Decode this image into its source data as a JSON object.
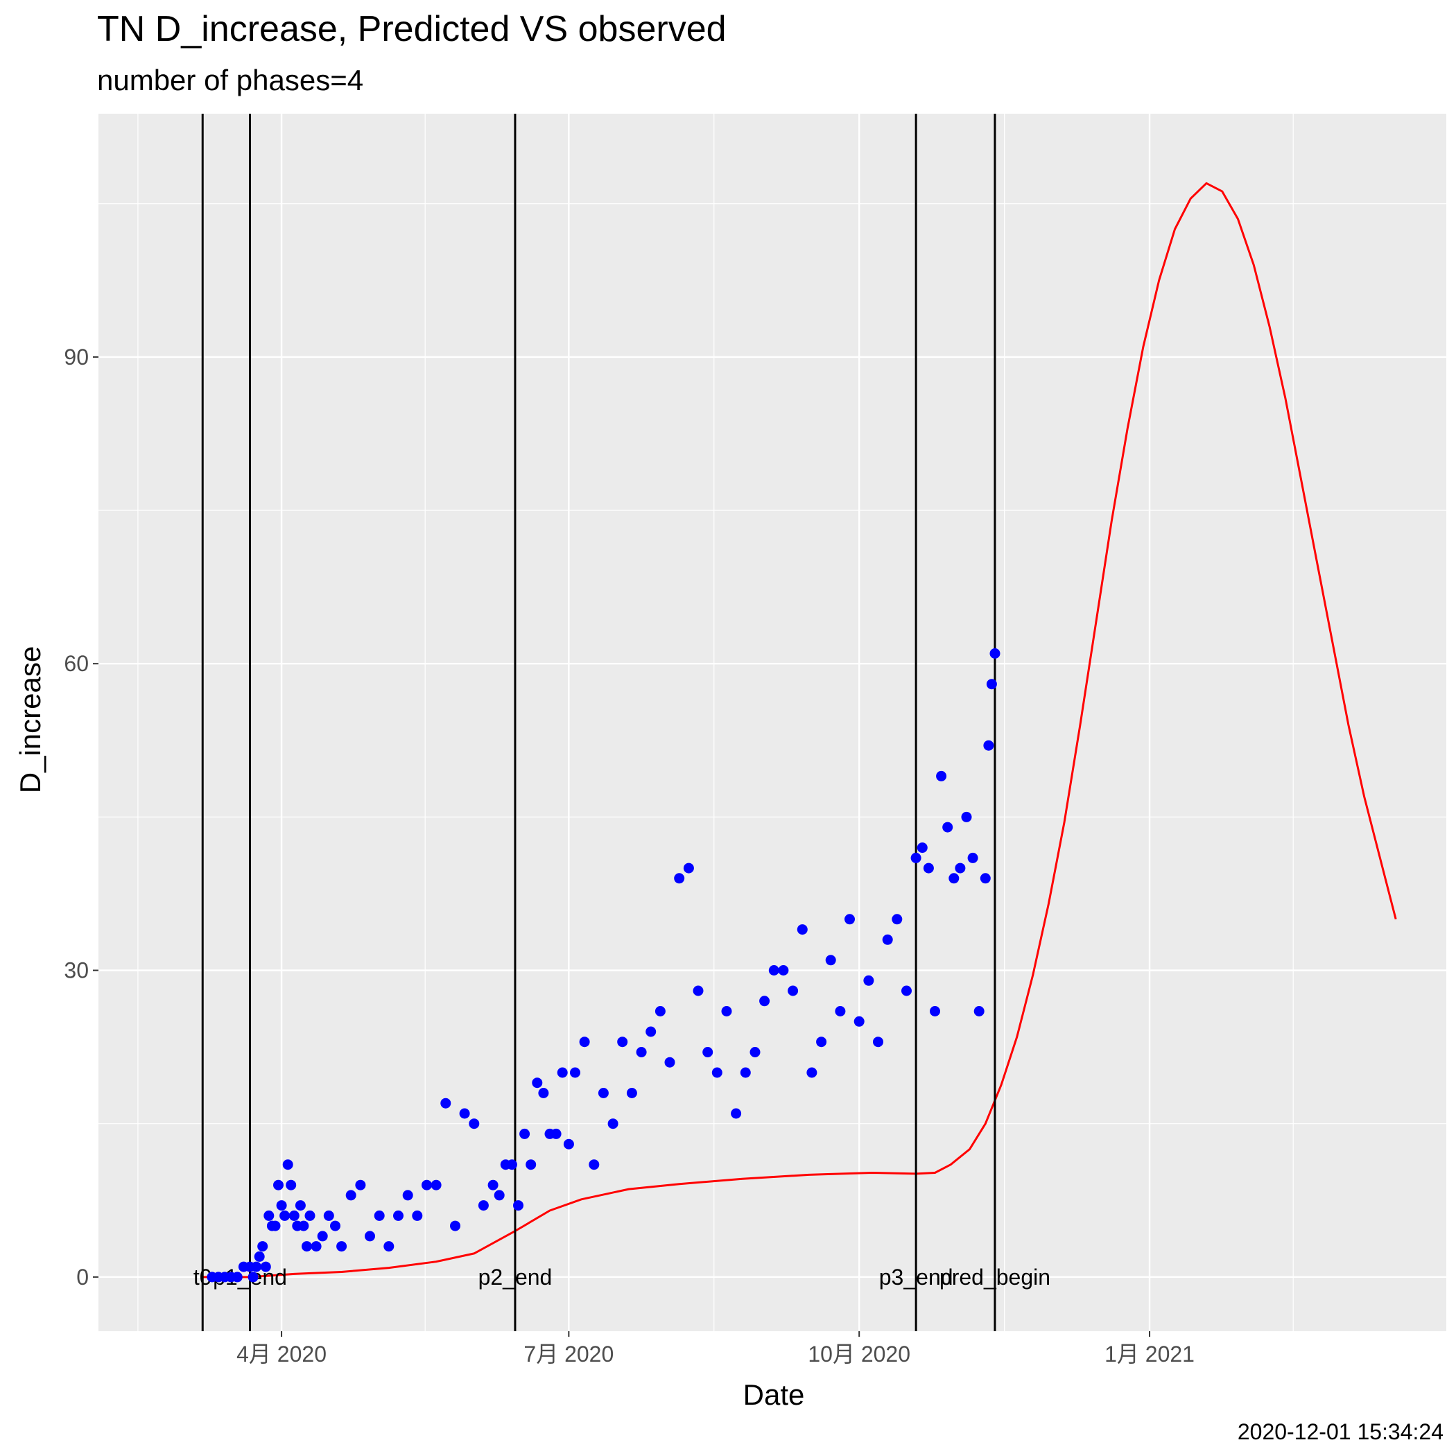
{
  "title": "TN D_increase, Predicted VS observed",
  "subtitle": "number of phases=4",
  "footer": "2020-12-01 15:34:24",
  "colors": {
    "panel": "#ebebeb",
    "grid": "#ffffff",
    "observed": "#0000ff",
    "predicted": "#ff0000",
    "vline": "#000000"
  },
  "chart_data": {
    "type": "scatter",
    "xlabel": "Date",
    "ylabel": "D_increase",
    "xlim": [
      "2020-02-03",
      "2021-04-05"
    ],
    "ylim": [
      -5.3,
      113.8
    ],
    "y_ticks": [
      0,
      30,
      60,
      90
    ],
    "x_ticks": [
      {
        "date": "2020-04-01",
        "label": "4月 2020"
      },
      {
        "date": "2020-07-01",
        "label": "7月 2020"
      },
      {
        "date": "2020-10-01",
        "label": "10月 2020"
      },
      {
        "date": "2021-01-01",
        "label": "1月 2021"
      }
    ],
    "grid": true,
    "vertical_lines": [
      {
        "date": "2020-03-07",
        "label": "t0"
      },
      {
        "date": "2020-03-22",
        "label": "p1_end"
      },
      {
        "date": "2020-06-14",
        "label": "p2_end"
      },
      {
        "date": "2020-10-19",
        "label": "p3_end"
      },
      {
        "date": "2020-11-13",
        "label": "pred_begin"
      }
    ],
    "series": [
      {
        "kind": "points",
        "x": [
          "2020-03-10",
          "2020-03-12",
          "2020-03-14",
          "2020-03-16",
          "2020-03-18",
          "2020-03-20",
          "2020-03-22",
          "2020-03-23",
          "2020-03-24",
          "2020-03-25",
          "2020-03-26",
          "2020-03-27",
          "2020-03-28",
          "2020-03-29",
          "2020-03-30",
          "2020-03-31",
          "2020-04-01",
          "2020-04-02",
          "2020-04-03",
          "2020-04-04",
          "2020-04-05",
          "2020-04-06",
          "2020-04-07",
          "2020-04-08",
          "2020-04-09",
          "2020-04-10",
          "2020-04-12",
          "2020-04-14",
          "2020-04-16",
          "2020-04-18",
          "2020-04-20",
          "2020-04-23",
          "2020-04-26",
          "2020-04-29",
          "2020-05-02",
          "2020-05-05",
          "2020-05-08",
          "2020-05-11",
          "2020-05-14",
          "2020-05-17",
          "2020-05-20",
          "2020-05-23",
          "2020-05-26",
          "2020-05-29",
          "2020-06-01",
          "2020-06-04",
          "2020-06-07",
          "2020-06-09",
          "2020-06-11",
          "2020-06-13",
          "2020-06-15",
          "2020-06-17",
          "2020-06-19",
          "2020-06-21",
          "2020-06-23",
          "2020-06-25",
          "2020-06-27",
          "2020-06-29",
          "2020-07-01",
          "2020-07-03",
          "2020-07-06",
          "2020-07-09",
          "2020-07-12",
          "2020-07-15",
          "2020-07-18",
          "2020-07-21",
          "2020-07-24",
          "2020-07-27",
          "2020-07-30",
          "2020-08-02",
          "2020-08-05",
          "2020-08-08",
          "2020-08-11",
          "2020-08-14",
          "2020-08-17",
          "2020-08-20",
          "2020-08-23",
          "2020-08-26",
          "2020-08-29",
          "2020-09-01",
          "2020-09-04",
          "2020-09-07",
          "2020-09-10",
          "2020-09-13",
          "2020-09-16",
          "2020-09-19",
          "2020-09-22",
          "2020-09-25",
          "2020-09-28",
          "2020-10-01",
          "2020-10-04",
          "2020-10-07",
          "2020-10-10",
          "2020-10-13",
          "2020-10-16",
          "2020-10-19",
          "2020-10-21",
          "2020-10-23",
          "2020-10-25",
          "2020-10-27",
          "2020-10-29",
          "2020-10-31",
          "2020-11-02",
          "2020-11-04",
          "2020-11-06",
          "2020-11-08",
          "2020-11-10",
          "2020-11-11",
          "2020-11-12",
          "2020-11-13"
        ],
        "y": [
          0,
          0,
          0,
          0,
          0,
          1,
          1,
          0,
          1,
          2,
          3,
          1,
          6,
          5,
          5,
          9,
          7,
          6,
          11,
          9,
          6,
          5,
          7,
          5,
          3,
          6,
          3,
          4,
          6,
          5,
          3,
          8,
          9,
          4,
          6,
          3,
          6,
          8,
          6,
          9,
          9,
          17,
          5,
          16,
          15,
          7,
          9,
          8,
          11,
          11,
          7,
          14,
          11,
          19,
          18,
          14,
          14,
          20,
          13,
          20,
          23,
          11,
          18,
          15,
          23,
          18,
          22,
          24,
          26,
          21,
          39,
          40,
          28,
          22,
          20,
          26,
          16,
          20,
          22,
          27,
          30,
          30,
          28,
          34,
          20,
          23,
          31,
          26,
          35,
          25,
          29,
          23,
          33,
          35,
          28,
          41,
          42,
          40,
          26,
          49,
          44,
          39,
          40,
          45,
          41,
          26,
          39,
          52,
          58,
          61
        ]
      },
      {
        "kind": "line",
        "x": [
          "2020-03-07",
          "2020-03-22",
          "2020-04-05",
          "2020-04-20",
          "2020-05-05",
          "2020-05-20",
          "2020-06-01",
          "2020-06-14",
          "2020-06-25",
          "2020-07-05",
          "2020-07-20",
          "2020-08-05",
          "2020-08-25",
          "2020-09-15",
          "2020-10-05",
          "2020-10-19",
          "2020-10-25",
          "2020-10-30",
          "2020-11-05",
          "2020-11-10",
          "2020-11-15",
          "2020-11-20",
          "2020-11-25",
          "2020-11-30",
          "2020-12-05",
          "2020-12-10",
          "2020-12-15",
          "2020-12-20",
          "2020-12-25",
          "2020-12-30",
          "2021-01-04",
          "2021-01-09",
          "2021-01-14",
          "2021-01-19",
          "2021-01-24",
          "2021-01-29",
          "2021-02-03",
          "2021-02-08",
          "2021-02-13",
          "2021-02-18",
          "2021-02-23",
          "2021-02-28",
          "2021-03-05",
          "2021-03-10",
          "2021-03-15",
          "2021-03-20"
        ],
        "y": [
          0,
          0,
          0.3,
          0.5,
          0.9,
          1.5,
          2.3,
          4.5,
          6.5,
          7.6,
          8.6,
          9.1,
          9.6,
          10,
          10.2,
          10.1,
          10.2,
          11,
          12.5,
          15,
          18.8,
          23.5,
          29.5,
          36.5,
          44.5,
          54,
          64,
          74,
          83,
          91,
          97.5,
          102.5,
          105.5,
          107,
          106.2,
          103.5,
          99,
          93,
          86,
          78,
          70,
          62,
          54,
          47,
          41,
          35
        ]
      }
    ]
  }
}
